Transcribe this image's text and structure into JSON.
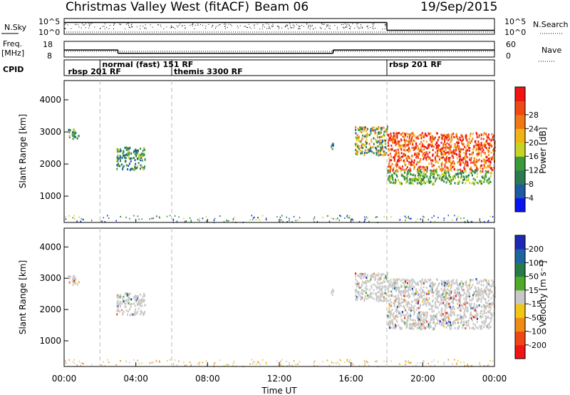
{
  "header": {
    "site": "Christmas Valley West (fitACF)",
    "beam": "Beam 06",
    "date": "19/Sep/2015"
  },
  "top_panels": {
    "nsky_label": "N.Sky",
    "nsky_ticks": [
      "10^5",
      "10^0"
    ],
    "nsearch_label": "N.Search",
    "nsearch_ticks": [
      "10^5",
      "10^0"
    ],
    "freq_label_1": "Freq.",
    "freq_label_2": "[MHz]",
    "freq_ticks": [
      "18",
      "8"
    ],
    "nave_label": "Nave",
    "nave_ticks": [
      "60",
      "0"
    ],
    "cpid_label": "CPID",
    "cpid_labels": [
      {
        "text": "rbsp 201 RF",
        "hour": 0.1,
        "row": 1
      },
      {
        "text": "normal (fast) 151 RF",
        "hour": 2.0,
        "row": 0
      },
      {
        "text": "themis 3300 RF",
        "hour": 6.0,
        "row": 1
      },
      {
        "text": "rbsp 201 RF",
        "hour": 18.0,
        "row": 0
      }
    ]
  },
  "axes": {
    "x_ticks": [
      "00:00",
      "04:00",
      "08:00",
      "12:00",
      "16:00",
      "20:00",
      "00:00"
    ],
    "x_title": "Time UT",
    "y_ticks": [
      "1000",
      "2000",
      "3000",
      "4000"
    ],
    "y_title": "Slant Range [km]"
  },
  "colorbars": {
    "power_title": "Power [dB]",
    "power_labels": [
      "4",
      "8",
      "12",
      "16",
      "20",
      "24",
      "28"
    ],
    "power_colors": [
      "#0a14f0",
      "#1e5aa0",
      "#2e7a50",
      "#3a9a3a",
      "#c8d424",
      "#f0b414",
      "#f07814",
      "#f04a14",
      "#f01414"
    ],
    "velocity_title": "Velocity [m s⁻¹]",
    "velocity_labels": [
      "200",
      "100",
      "50",
      "15",
      "-15",
      "-50",
      "-100",
      "-200"
    ],
    "velocity_colors": [
      "#1e28b4",
      "#1e64a0",
      "#287a46",
      "#50aa28",
      "#c8c8c8",
      "#f0c814",
      "#f08c14",
      "#f04614",
      "#f01414"
    ]
  },
  "chart_data": {
    "type": "heatmap",
    "x_range_hours": [
      0,
      24
    ],
    "y_range_km": [
      180,
      4600
    ],
    "x_unit": "hours UT",
    "y_unit": "km",
    "echo_regions_power": [
      {
        "t0": 0.2,
        "t1": 0.8,
        "r0": 2800,
        "r1": 3150,
        "level": "low"
      },
      {
        "t0": 2.9,
        "t1": 4.5,
        "r0": 1850,
        "r1": 2550,
        "level": "low"
      },
      {
        "t0": 14.8,
        "t1": 15.0,
        "r0": 2500,
        "r1": 2700,
        "level": "low"
      },
      {
        "t0": 16.2,
        "t1": 18.0,
        "r0": 2300,
        "r1": 3200,
        "level": "mixed"
      },
      {
        "t0": 18.0,
        "t1": 24.0,
        "r0": 1800,
        "r1": 3000,
        "level": "high"
      },
      {
        "t0": 18.0,
        "t1": 23.8,
        "r0": 1400,
        "r1": 1850,
        "level": "mid"
      }
    ],
    "cpid_change_hours": [
      2.0,
      6.0,
      18.0
    ],
    "freq_segments_mhz": [
      {
        "t0": 0,
        "t1": 3.0,
        "value": 12.5
      },
      {
        "t0": 3.0,
        "t1": 15.0,
        "value": 10.4
      },
      {
        "t0": 15.0,
        "t1": 24,
        "value": 12.5
      }
    ],
    "nsky_segments": [
      {
        "t0": 0,
        "t1": 18.0,
        "level": 0.75
      },
      {
        "t0": 18.0,
        "t1": 24,
        "level": 0.25
      }
    ]
  }
}
